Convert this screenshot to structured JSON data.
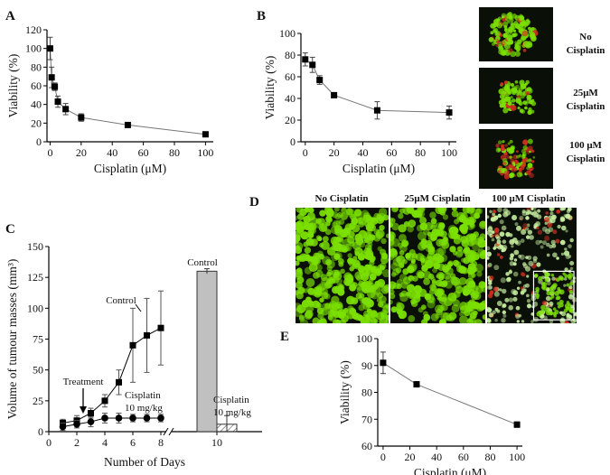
{
  "panels": {
    "A": "A",
    "B": "B",
    "C": "C",
    "D": "D",
    "E": "E"
  },
  "chart_data": [
    {
      "panel": "A",
      "type": "line",
      "xlabel": "Cisplatin (μM)",
      "ylabel": "Viability (%)",
      "xlim": [
        -2,
        105
      ],
      "ylim": [
        0,
        120
      ],
      "xticks": [
        0,
        20,
        40,
        60,
        80,
        100
      ],
      "yticks": [
        0,
        20,
        40,
        60,
        80,
        100,
        120
      ],
      "series": [
        {
          "x": [
            0,
            1,
            3,
            5,
            10,
            20,
            50,
            100
          ],
          "y": [
            100,
            69,
            59,
            43,
            35,
            26,
            18,
            8
          ],
          "err": [
            12,
            11,
            4,
            6,
            6,
            4,
            2,
            2
          ]
        }
      ]
    },
    {
      "panel": "B",
      "type": "line",
      "xlabel": "Cisplatin (μM)",
      "ylabel": "Viability (%)",
      "xlim": [
        -3,
        105
      ],
      "ylim": [
        0,
        100
      ],
      "xticks": [
        0,
        20,
        40,
        60,
        80,
        100
      ],
      "yticks": [
        0,
        20,
        40,
        60,
        80,
        100
      ],
      "series": [
        {
          "x": [
            0,
            5,
            10,
            20,
            50,
            100
          ],
          "y": [
            76,
            71,
            57,
            43,
            29,
            27
          ],
          "err": [
            6,
            7,
            4,
            2,
            8,
            6
          ]
        }
      ]
    },
    {
      "panel": "C",
      "type": "line",
      "xlabel": "Number of Days",
      "ylabel": "Volume of tumour masses (mm³)",
      "ylim": [
        0,
        150
      ],
      "yticks": [
        0,
        25,
        50,
        75,
        100,
        125,
        150
      ],
      "xticks": [
        "0",
        "2",
        "4",
        "6",
        "8",
        "10"
      ],
      "series": [
        {
          "name": "Control",
          "x": [
            1,
            2,
            3,
            4,
            5,
            6,
            7,
            8
          ],
          "y": [
            7,
            9,
            15,
            25,
            40,
            70,
            78,
            84
          ],
          "err": [
            3,
            4,
            4,
            5,
            10,
            30,
            30,
            30
          ]
        },
        {
          "name": "Cisplatin 10 mg/kg",
          "x": [
            1,
            2,
            3,
            4,
            5,
            6,
            7,
            8
          ],
          "y": [
            4,
            6,
            8,
            11,
            11,
            11,
            11,
            11
          ],
          "err": [
            3,
            3,
            4,
            4,
            4,
            3,
            3,
            3
          ]
        }
      ],
      "bars": [
        {
          "label": "Control",
          "x": 10,
          "value": 130,
          "err": 2
        },
        {
          "label_lines": [
            "Cisplatin",
            "10 mg/kg"
          ],
          "x": 10,
          "value": 6,
          "err": 7
        }
      ],
      "annotations": {
        "treatment": "Treatment",
        "control": "Control",
        "cisplatin_lines": [
          "Cisplatin",
          "10 mg/kg"
        ]
      }
    },
    {
      "panel": "E",
      "type": "line",
      "xlabel": "Cisplatin  (μM)",
      "ylabel": "Viability (%)",
      "xlim": [
        -4,
        104
      ],
      "ylim": [
        60,
        100
      ],
      "xticks": [
        0,
        20,
        40,
        60,
        80,
        100
      ],
      "yticks": [
        60,
        70,
        80,
        90,
        100
      ],
      "series": [
        {
          "x": [
            0,
            25,
            100
          ],
          "y": [
            91,
            83,
            68
          ],
          "err": [
            4,
            1,
            1
          ]
        }
      ]
    }
  ],
  "micrographs_B": [
    {
      "lines": [
        "No",
        "Cisplatin"
      ]
    },
    {
      "lines": [
        "25μM",
        "Cisplatin"
      ]
    },
    {
      "lines": [
        "100 μM",
        "Cisplatin"
      ]
    }
  ],
  "micrographs_D": [
    {
      "label": "No Cisplatin"
    },
    {
      "label": "25μM Cisplatin"
    },
    {
      "label": "100 μM Cisplatin"
    }
  ],
  "colors": {
    "background": "#ffffff",
    "marker": "#000000",
    "line": "#777777",
    "bar_control": "#c0c0c0",
    "micro_bg": "#0a0f08",
    "cell_green": "#7be000",
    "cell_red": "#d03020"
  }
}
